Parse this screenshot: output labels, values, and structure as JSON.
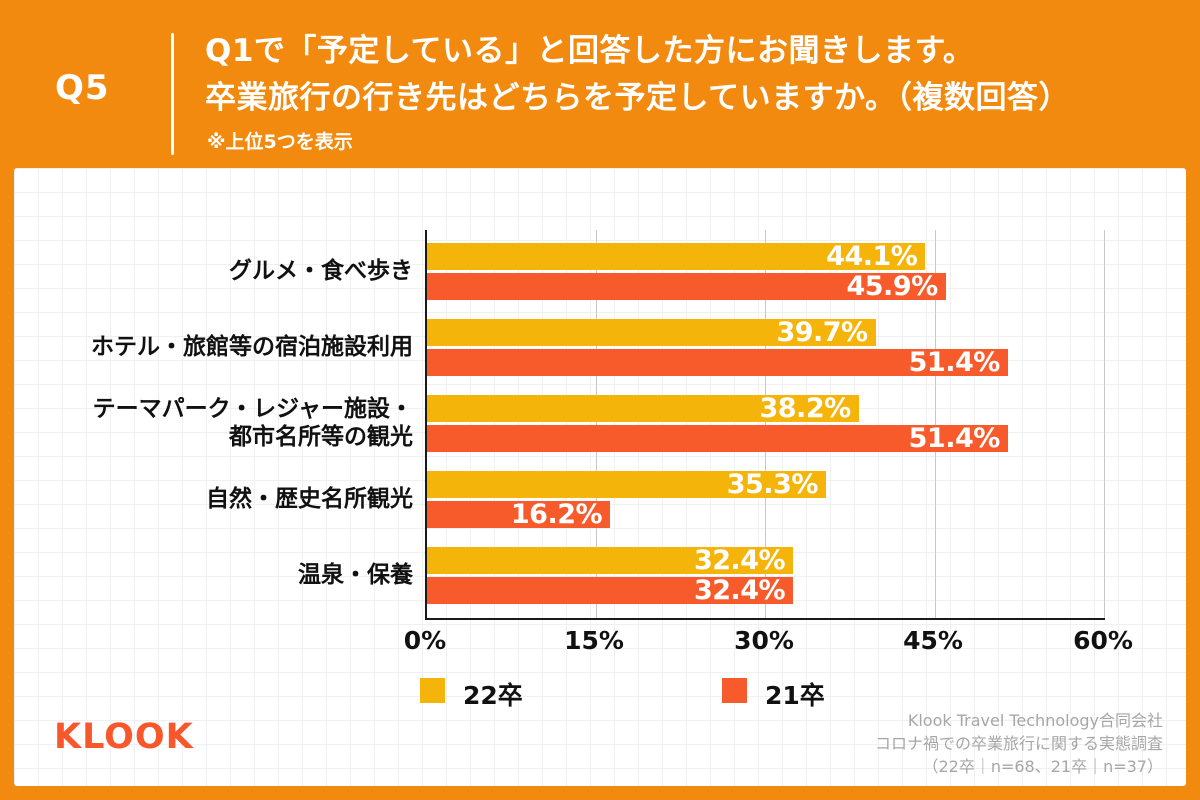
{
  "header": {
    "q_label": "Q5",
    "title_line1": "Q1で「予定している」と回答した方にお聞きします。",
    "title_line2": "卒業旅行の行き先はどちらを予定していますか。（複数回答）",
    "note": "※上位5つを表示"
  },
  "colors": {
    "background_orange": "#F28A10",
    "bar_yellow": "#F4B40A",
    "bar_orange": "#F85B2B",
    "logo_orange": "#F8572B",
    "axis_black": "#1A1A1A",
    "source_gray": "#A6A6A6"
  },
  "chart_data": {
    "type": "bar",
    "orientation": "horizontal",
    "title": "卒業旅行の行き先（上位5つ）",
    "categories": [
      "グルメ・食べ歩き",
      "ホテル・旅館等の宿泊施設利用",
      "テーマパーク・レジャー施設・都市名所等の観光",
      "自然・歴史名所観光",
      "温泉・保養"
    ],
    "category_lines": [
      [
        "グルメ・食べ歩き"
      ],
      [
        "ホテル・旅館等の宿泊施設利用"
      ],
      [
        "テーマパーク・レジャー施設・",
        "都市名所等の観光"
      ],
      [
        "自然・歴史名所観光"
      ],
      [
        "温泉・保養"
      ]
    ],
    "series": [
      {
        "name": "22卒",
        "color": "#F4B40A",
        "values": [
          44.1,
          39.7,
          38.2,
          35.3,
          32.4
        ],
        "labels": [
          "44.1%",
          "39.7%",
          "38.2%",
          "35.3%",
          "32.4%"
        ]
      },
      {
        "name": "21卒",
        "color": "#F85B2B",
        "values": [
          45.9,
          51.4,
          51.4,
          16.2,
          32.4
        ],
        "labels": [
          "45.9%",
          "51.4%",
          "51.4%",
          "16.2%",
          "32.4%"
        ]
      }
    ],
    "xlim": [
      0,
      60
    ],
    "x_ticks": [
      "0%",
      "15%",
      "30%",
      "45%",
      "60%"
    ],
    "grid": true,
    "value_labels_inside_bars": true,
    "legend_position": "bottom"
  },
  "legend": {
    "items": [
      {
        "label": "22卒",
        "color": "#F4B40A"
      },
      {
        "label": "21卒",
        "color": "#F85B2B"
      }
    ]
  },
  "footer": {
    "logo": "KLOOK",
    "source_line1": "Klook Travel Technology合同会社",
    "source_line2": "コロナ禍での卒業旅行に関する実態調査",
    "source_line3": "（22卒｜n=68、21卒｜n=37）"
  }
}
